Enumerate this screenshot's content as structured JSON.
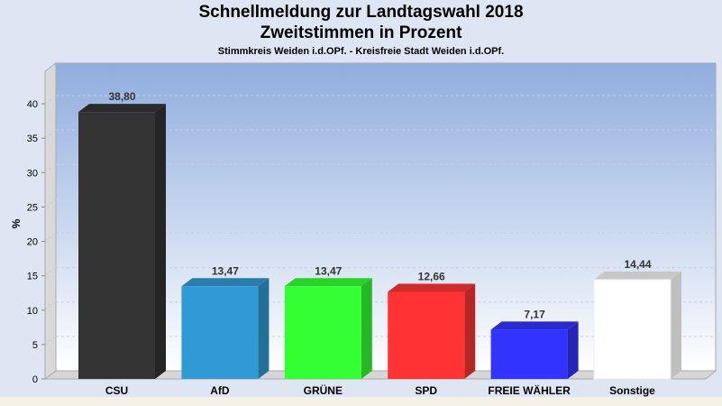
{
  "title": "Schnellmeldung zur Landtagswahl 2018",
  "subtitle": "Zweitstimmen in Prozent",
  "subtitle2": "Stimmkreis Weiden i.d.OPf. - Kreisfreie Stadt Weiden i.d.OPf.",
  "chart_data": {
    "type": "bar",
    "title": "Schnellmeldung zur Landtagswahl 2018",
    "ylabel": "%",
    "xlabel": "",
    "ylim": [
      0,
      40
    ],
    "yticks": [
      0,
      5,
      10,
      15,
      20,
      25,
      30,
      35,
      40
    ],
    "grid": true,
    "categories": [
      "CSU",
      "AfD",
      "GRÜNE",
      "SPD",
      "FREIE WÄHLER",
      "Sonstige"
    ],
    "values": [
      38.8,
      13.47,
      13.47,
      12.66,
      7.17,
      14.44
    ],
    "labels": [
      "38,80",
      "13,47",
      "13,47",
      "12,66",
      "7,17",
      "14,44"
    ],
    "colors": [
      "#333333",
      "#2f9ad4",
      "#33ff33",
      "#ff3333",
      "#3333ff",
      "#ffffff"
    ]
  }
}
